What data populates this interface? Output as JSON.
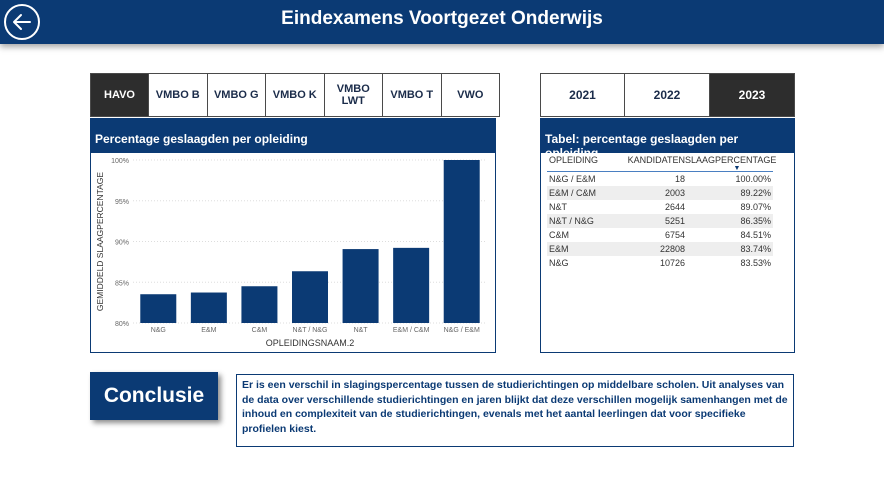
{
  "header": {
    "title": "Eindexamens Voortgezet Onderwijs"
  },
  "opleiding_tabs": [
    {
      "label": "HAVO",
      "active": true
    },
    {
      "label": "VMBO B",
      "active": false
    },
    {
      "label": "VMBO G",
      "active": false
    },
    {
      "label": "VMBO K",
      "active": false
    },
    {
      "label": "VMBO LWT",
      "active": false
    },
    {
      "label": "VMBO T",
      "active": false
    },
    {
      "label": "VWO",
      "active": false
    }
  ],
  "year_tabs": [
    {
      "label": "2021",
      "active": false
    },
    {
      "label": "2022",
      "active": false
    },
    {
      "label": "2023",
      "active": true
    }
  ],
  "chart_panel": {
    "title": "Percentage geslaagden per opleiding"
  },
  "chart_data": {
    "type": "bar",
    "title": "Percentage geslaagden per opleiding",
    "xlabel": "OPLEIDINGSNAAM.2",
    "ylabel": "GEMIDDELD SLAAGPERCENTAGE",
    "categories": [
      "N&G",
      "E&M",
      "C&M",
      "N&T / N&G",
      "N&T",
      "E&M / C&M",
      "N&G / E&M"
    ],
    "values": [
      83.53,
      83.74,
      84.51,
      86.35,
      89.07,
      89.22,
      100.0
    ],
    "ylim": [
      80,
      100
    ],
    "yticks": [
      "80%",
      "85%",
      "90%",
      "95%",
      "100%"
    ],
    "ytick_values": [
      80,
      85,
      90,
      95,
      100
    ],
    "grid": true,
    "bar_color": "#0b3a74"
  },
  "table_panel": {
    "title": "Tabel: percentage geslaagden per opleiding",
    "columns": [
      "OPLEIDING",
      "KANDIDATEN",
      "SLAAGPERCENTAGE"
    ],
    "rows": [
      [
        "N&G / E&M",
        "18",
        "100.00%"
      ],
      [
        "E&M / C&M",
        "2003",
        "89.22%"
      ],
      [
        "N&T",
        "2644",
        "89.07%"
      ],
      [
        "N&T / N&G",
        "5251",
        "86.35%"
      ],
      [
        "C&M",
        "6754",
        "84.51%"
      ],
      [
        "E&M",
        "22808",
        "83.74%"
      ],
      [
        "N&G",
        "10726",
        "83.53%"
      ]
    ]
  },
  "conclusie": {
    "button_label": "Conclusie",
    "text": "Er is een verschil in slagingspercentage tussen de studierichtingen op middelbare scholen. Uit analyses van de data over verschillende studierichtingen en jaren blijkt dat deze verschillen mogelijk samenhangen met de inhoud en complexiteit van de studierichtingen, evenals met het aantal leerlingen dat voor specifieke profielen kiest."
  },
  "colors": {
    "primary": "#0b3a74",
    "active_tab": "#2d2d2d"
  }
}
